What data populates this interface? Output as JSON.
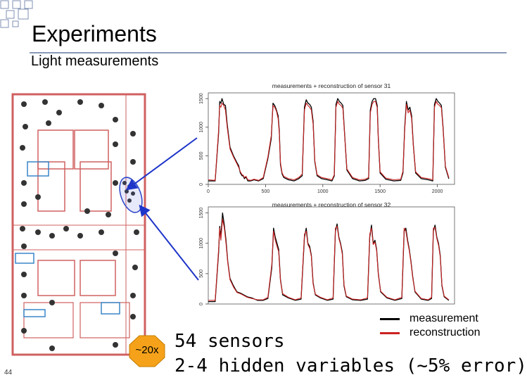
{
  "slide": {
    "title": "Experiments",
    "subtitle": "Light measurements",
    "slide_number": "44",
    "badge": "~20x",
    "bullets": [
      "54 sensors",
      "2-4 hidden variables (~5% error)"
    ]
  },
  "legend": {
    "items": [
      {
        "label": "measurement",
        "color": "#000000"
      },
      {
        "label": "reconstruction",
        "color": "#cc2222"
      }
    ]
  },
  "colors": {
    "measurement": "#000000",
    "reconstruction": "#cc2222",
    "arrow": "#1f35c9",
    "title_rule": "#8a98b8"
  },
  "chart_data": [
    {
      "type": "line",
      "title": "measurements + reconstruction of sensor 31",
      "xlim": [
        0,
        2150
      ],
      "ylim": [
        0,
        1600
      ],
      "xticks": [
        0,
        500,
        1000,
        1500,
        2000
      ],
      "yticks": [
        0,
        500,
        1000,
        1500
      ],
      "series": [
        {
          "name": "measurement",
          "x": [
            0,
            60,
            90,
            100,
            110,
            120,
            135,
            150,
            165,
            190,
            220,
            250,
            265,
            280,
            295,
            305,
            315,
            330,
            345,
            370,
            400,
            440,
            480,
            520,
            550,
            565,
            580,
            595,
            610,
            620,
            630,
            645,
            660,
            700,
            750,
            790,
            820,
            840,
            855,
            870,
            885,
            900,
            915,
            930,
            950,
            990,
            1040,
            1080,
            1100,
            1115,
            1130,
            1145,
            1160,
            1175,
            1190,
            1210,
            1260,
            1320,
            1370,
            1400,
            1415,
            1430,
            1445,
            1460,
            1475,
            1485,
            1500,
            1550,
            1620,
            1680,
            1700,
            1715,
            1730,
            1745,
            1760,
            1775,
            1790,
            1810,
            1860,
            1920,
            1960,
            1975,
            1990,
            2005,
            2020,
            2035,
            2050,
            2070,
            2100
          ],
          "y": [
            60,
            60,
            900,
            1450,
            1420,
            1500,
            1400,
            1380,
            1050,
            650,
            500,
            380,
            330,
            200,
            150,
            150,
            100,
            130,
            60,
            60,
            80,
            60,
            100,
            450,
            800,
            1420,
            1380,
            1300,
            1200,
            950,
            350,
            180,
            120,
            80,
            60,
            100,
            150,
            1350,
            1480,
            1420,
            1400,
            1350,
            1100,
            400,
            150,
            100,
            80,
            60,
            150,
            1400,
            1500,
            1450,
            1420,
            1380,
            900,
            250,
            100,
            60,
            70,
            100,
            1300,
            1450,
            1500,
            1500,
            1380,
            800,
            200,
            90,
            60,
            70,
            200,
            1000,
            1450,
            1300,
            1350,
            1200,
            700,
            200,
            100,
            80,
            60,
            1400,
            1500,
            1450,
            1420,
            1380,
            1000,
            300,
            100
          ]
        },
        {
          "name": "reconstruction",
          "x": [
            0,
            60,
            90,
            100,
            110,
            120,
            135,
            150,
            165,
            190,
            220,
            250,
            265,
            280,
            295,
            305,
            315,
            330,
            345,
            370,
            400,
            440,
            480,
            520,
            550,
            565,
            580,
            595,
            610,
            620,
            630,
            645,
            660,
            700,
            750,
            790,
            820,
            840,
            855,
            870,
            885,
            900,
            915,
            930,
            950,
            990,
            1040,
            1080,
            1100,
            1115,
            1130,
            1145,
            1160,
            1175,
            1190,
            1210,
            1260,
            1320,
            1370,
            1400,
            1415,
            1430,
            1445,
            1460,
            1475,
            1485,
            1500,
            1550,
            1620,
            1680,
            1700,
            1715,
            1730,
            1745,
            1760,
            1775,
            1790,
            1810,
            1860,
            1920,
            1960,
            1975,
            1990,
            2005,
            2020,
            2035,
            2050,
            2070,
            2100
          ],
          "y": [
            80,
            70,
            950,
            1380,
            1350,
            1420,
            1380,
            1300,
            1000,
            620,
            480,
            360,
            300,
            220,
            170,
            160,
            120,
            140,
            80,
            70,
            90,
            70,
            120,
            480,
            850,
            1380,
            1350,
            1280,
            1150,
            900,
            380,
            200,
            140,
            100,
            80,
            120,
            180,
            1300,
            1420,
            1380,
            1350,
            1300,
            1050,
            420,
            170,
            120,
            100,
            80,
            170,
            1350,
            1450,
            1400,
            1380,
            1330,
            880,
            270,
            120,
            80,
            90,
            120,
            1250,
            1400,
            1450,
            1450,
            1340,
            780,
            220,
            110,
            80,
            90,
            230,
            950,
            1400,
            1250,
            1300,
            1150,
            680,
            220,
            120,
            100,
            80,
            1350,
            1450,
            1400,
            1380,
            1340,
            970,
            320,
            120
          ]
        }
      ]
    },
    {
      "type": "line",
      "title": "measurements + reconstruction of sensor 32",
      "xlim": [
        0,
        2150
      ],
      "ylim": [
        0,
        1600
      ],
      "xticks": [],
      "yticks": [
        0,
        500,
        1000,
        1500
      ],
      "series": [
        {
          "name": "measurement",
          "x": [
            0,
            60,
            90,
            100,
            110,
            125,
            140,
            155,
            170,
            190,
            220,
            250,
            280,
            310,
            340,
            380,
            430,
            480,
            520,
            555,
            570,
            585,
            600,
            615,
            630,
            650,
            700,
            760,
            810,
            840,
            855,
            870,
            885,
            900,
            915,
            935,
            980,
            1040,
            1090,
            1110,
            1125,
            1140,
            1155,
            1170,
            1185,
            1205,
            1260,
            1330,
            1390,
            1410,
            1425,
            1440,
            1455,
            1470,
            1485,
            1505,
            1560,
            1630,
            1690,
            1710,
            1725,
            1740,
            1755,
            1770,
            1785,
            1805,
            1860,
            1920,
            1950,
            1965,
            1980,
            1995,
            2010,
            2025,
            2040,
            2060,
            2100
          ],
          "y": [
            40,
            40,
            850,
            1280,
            1100,
            1500,
            1300,
            1050,
            700,
            420,
            300,
            200,
            180,
            150,
            120,
            100,
            60,
            60,
            90,
            600,
            1250,
            1100,
            1000,
            900,
            400,
            150,
            100,
            60,
            80,
            1100,
            1250,
            1000,
            950,
            800,
            350,
            150,
            100,
            60,
            80,
            1200,
            1320,
            1100,
            1000,
            850,
            300,
            120,
            70,
            60,
            80,
            1100,
            1300,
            1000,
            1050,
            900,
            500,
            200,
            100,
            60,
            90,
            1200,
            1250,
            1050,
            900,
            700,
            450,
            200,
            80,
            60,
            90,
            1200,
            1300,
            1100,
            1000,
            800,
            300,
            120,
            60
          ]
        },
        {
          "name": "reconstruction",
          "x": [
            0,
            60,
            90,
            100,
            110,
            125,
            140,
            155,
            170,
            190,
            220,
            250,
            280,
            310,
            340,
            380,
            430,
            480,
            520,
            555,
            570,
            585,
            600,
            615,
            630,
            650,
            700,
            760,
            810,
            840,
            855,
            870,
            885,
            900,
            915,
            935,
            980,
            1040,
            1090,
            1110,
            1125,
            1140,
            1155,
            1170,
            1185,
            1205,
            1260,
            1330,
            1390,
            1410,
            1425,
            1440,
            1455,
            1470,
            1485,
            1505,
            1560,
            1630,
            1690,
            1710,
            1725,
            1740,
            1755,
            1770,
            1785,
            1805,
            1860,
            1920,
            1950,
            1965,
            1980,
            1995,
            2010,
            2025,
            2040,
            2060,
            2100
          ],
          "y": [
            60,
            60,
            900,
            1250,
            1050,
            1400,
            1250,
            1000,
            680,
            400,
            280,
            190,
            170,
            140,
            110,
            90,
            70,
            70,
            110,
            650,
            1200,
            1050,
            950,
            860,
            380,
            170,
            110,
            70,
            100,
            1150,
            1200,
            980,
            920,
            780,
            330,
            160,
            110,
            70,
            100,
            1250,
            1280,
            1080,
            980,
            820,
            320,
            130,
            80,
            70,
            100,
            1150,
            1250,
            980,
            1020,
            880,
            480,
            210,
            110,
            70,
            110,
            1250,
            1200,
            1020,
            880,
            680,
            430,
            210,
            90,
            70,
            110,
            1250,
            1260,
            1080,
            970,
            780,
            320,
            130,
            70
          ]
        }
      ]
    }
  ]
}
